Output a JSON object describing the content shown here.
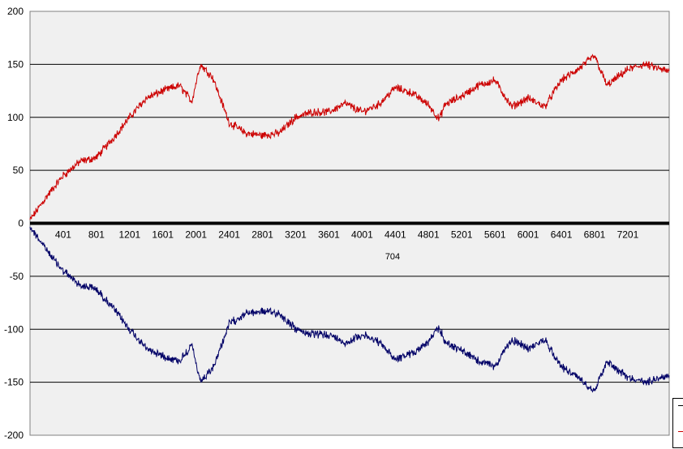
{
  "chart_data": {
    "type": "line",
    "title": "",
    "xlabel": "704",
    "ylabel": "",
    "xlim": [
      1,
      7700
    ],
    "ylim": [
      -200,
      200
    ],
    "y_ticks": [
      200,
      150,
      100,
      50,
      0,
      -50,
      -100,
      -150,
      -200
    ],
    "x_ticks": [
      401,
      801,
      1201,
      1601,
      2001,
      2401,
      2801,
      3201,
      3601,
      4001,
      4401,
      4801,
      5201,
      5601,
      6001,
      6401,
      6801,
      7201
    ],
    "grid": "horizontal",
    "background_color": "#f0f0f0",
    "legend_placement": "bottom-right",
    "series": [
      {
        "color": "#cc0000",
        "x": [
          1,
          200,
          400,
          600,
          800,
          1000,
          1200,
          1400,
          1600,
          1800,
          1950,
          2050,
          2200,
          2400,
          2600,
          2800,
          3000,
          3200,
          3400,
          3600,
          3800,
          4000,
          4200,
          4400,
          4600,
          4800,
          4930,
          5000,
          5200,
          5400,
          5600,
          5800,
          6000,
          6200,
          6400,
          6600,
          6800,
          6950,
          7200,
          7400,
          7700
        ],
        "values": [
          3,
          25,
          45,
          58,
          62,
          80,
          100,
          118,
          125,
          130,
          115,
          150,
          138,
          95,
          85,
          83,
          85,
          100,
          105,
          105,
          113,
          105,
          112,
          128,
          123,
          112,
          98,
          112,
          120,
          130,
          135,
          110,
          118,
          110,
          135,
          145,
          158,
          130,
          145,
          150,
          143
        ]
      },
      {
        "color": "#000066",
        "x": [
          1,
          200,
          400,
          600,
          800,
          1000,
          1200,
          1400,
          1600,
          1800,
          1950,
          2050,
          2200,
          2400,
          2600,
          2800,
          3000,
          3200,
          3400,
          3600,
          3800,
          4000,
          4200,
          4400,
          4600,
          4800,
          4930,
          5000,
          5200,
          5400,
          5600,
          5800,
          6000,
          6200,
          6400,
          6600,
          6800,
          6950,
          7200,
          7400,
          7700
        ],
        "values": [
          -3,
          -25,
          -45,
          -58,
          -62,
          -80,
          -100,
          -118,
          -125,
          -130,
          -115,
          -150,
          -138,
          -95,
          -85,
          -83,
          -85,
          -100,
          -105,
          -105,
          -113,
          -105,
          -112,
          -128,
          -123,
          -112,
          -98,
          -112,
          -120,
          -130,
          -135,
          -110,
          -118,
          -110,
          -135,
          -145,
          -158,
          -130,
          -145,
          -150,
          -143
        ]
      }
    ]
  }
}
